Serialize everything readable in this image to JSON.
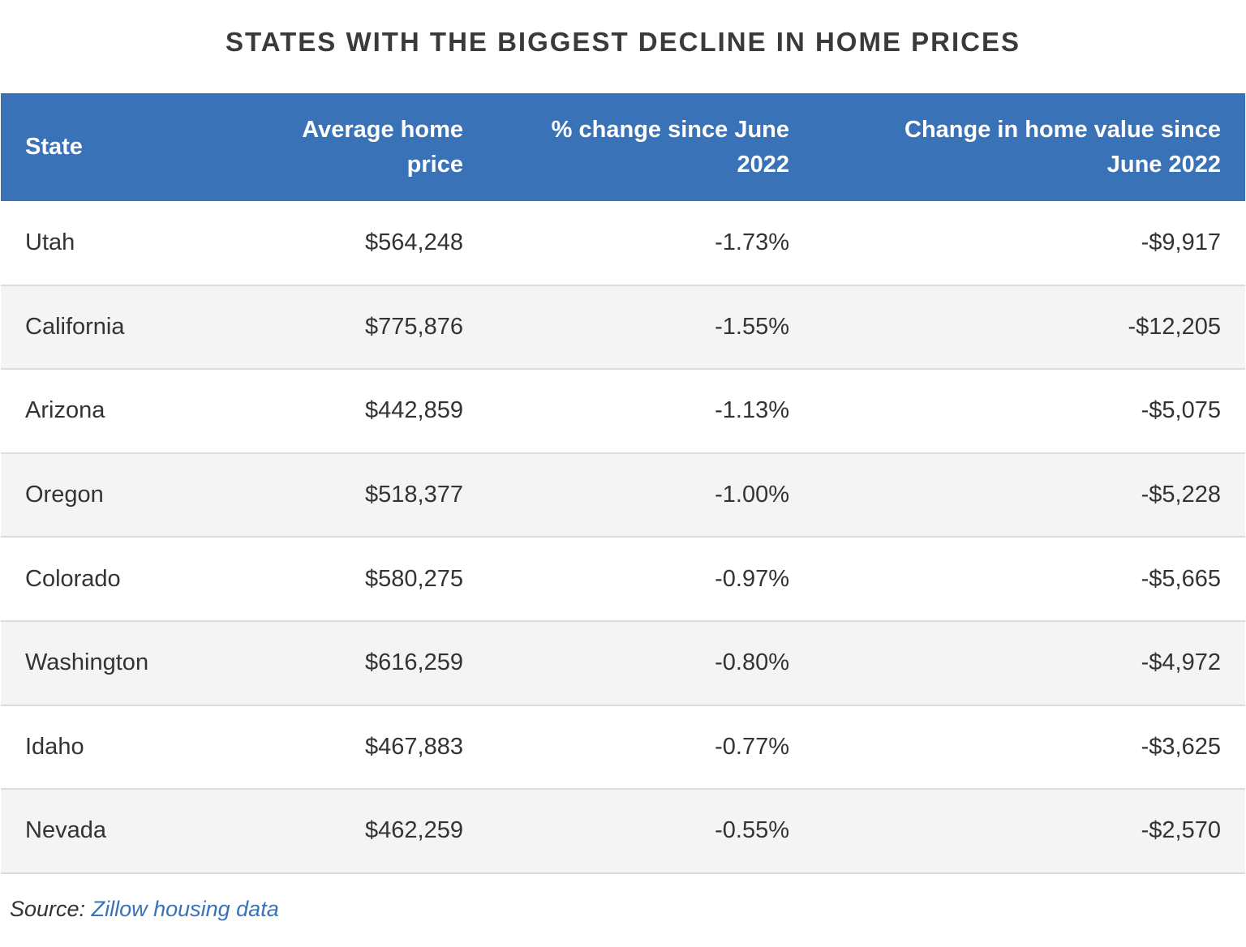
{
  "chart_data": {
    "type": "table",
    "title": "STATES WITH THE BIGGEST DECLINE IN HOME PRICES",
    "columns": [
      "State",
      "Average home price",
      "% change since June 2022",
      "Change in home value since June 2022"
    ],
    "rows": [
      [
        "Utah",
        "$564,248",
        "-1.73%",
        "-$9,917"
      ],
      [
        "California",
        "$775,876",
        "-1.55%",
        "-$12,205"
      ],
      [
        "Arizona",
        "$442,859",
        "-1.13%",
        "-$5,075"
      ],
      [
        "Oregon",
        "$518,377",
        "-1.00%",
        "-$5,228"
      ],
      [
        "Colorado",
        "$580,275",
        "-0.97%",
        "-$5,665"
      ],
      [
        "Washington",
        "$616,259",
        "-0.80%",
        "-$4,972"
      ],
      [
        "Idaho",
        "$467,883",
        "-0.77%",
        "-$3,625"
      ],
      [
        "Nevada",
        "$462,259",
        "-0.55%",
        "-$2,570"
      ]
    ],
    "header_color": "#3a72b8",
    "stripe_color": "#f4f4f4"
  },
  "source": {
    "label": "Source:",
    "link_text": "Zillow housing data",
    "link_color": "#3a72b8"
  }
}
